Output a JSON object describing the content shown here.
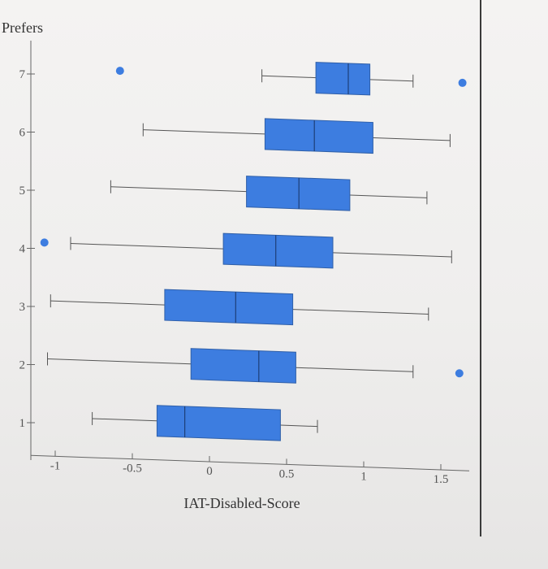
{
  "chart_data": {
    "type": "boxplot",
    "orientation": "horizontal",
    "title": "",
    "xlabel": "IAT-Disabled-Score",
    "ylabel": "Prefers",
    "xlim": [
      -1.15,
      1.7
    ],
    "ylim": [
      0.4,
      7.8
    ],
    "x_ticks": [
      -1,
      -0.5,
      0,
      0.5,
      1,
      1.5
    ],
    "x_tick_labels": [
      "-1",
      "-0.5",
      "0",
      "0.5",
      "1",
      "1.5"
    ],
    "y_ticks": [
      1,
      2,
      3,
      4,
      5,
      6,
      7
    ],
    "y_tick_labels": [
      "1",
      "2",
      "3",
      "4",
      "5",
      "6",
      "7"
    ],
    "box_color": "#3d7de0",
    "grid": false,
    "groups": [
      {
        "category": "1",
        "whisker_low": -0.76,
        "q1": -0.34,
        "median": -0.16,
        "q3": 0.46,
        "whisker_high": 0.7,
        "outliers": []
      },
      {
        "category": "2",
        "whisker_low": -1.05,
        "q1": -0.12,
        "median": 0.32,
        "q3": 0.56,
        "whisker_high": 1.32,
        "outliers": [
          1.62
        ]
      },
      {
        "category": "3",
        "whisker_low": -1.03,
        "q1": -0.29,
        "median": 0.17,
        "q3": 0.54,
        "whisker_high": 1.42,
        "outliers": []
      },
      {
        "category": "4",
        "whisker_low": -0.9,
        "q1": 0.09,
        "median": 0.43,
        "q3": 0.8,
        "whisker_high": 1.57,
        "outliers": [
          -1.07
        ]
      },
      {
        "category": "5",
        "whisker_low": -0.64,
        "q1": 0.24,
        "median": 0.58,
        "q3": 0.91,
        "whisker_high": 1.41,
        "outliers": []
      },
      {
        "category": "6",
        "whisker_low": -0.43,
        "q1": 0.36,
        "median": 0.68,
        "q3": 1.06,
        "whisker_high": 1.56,
        "outliers": []
      },
      {
        "category": "7",
        "whisker_low": 0.34,
        "q1": 0.69,
        "median": 0.9,
        "q3": 1.04,
        "whisker_high": 1.32,
        "outliers": [
          -0.58,
          1.64
        ]
      }
    ]
  }
}
